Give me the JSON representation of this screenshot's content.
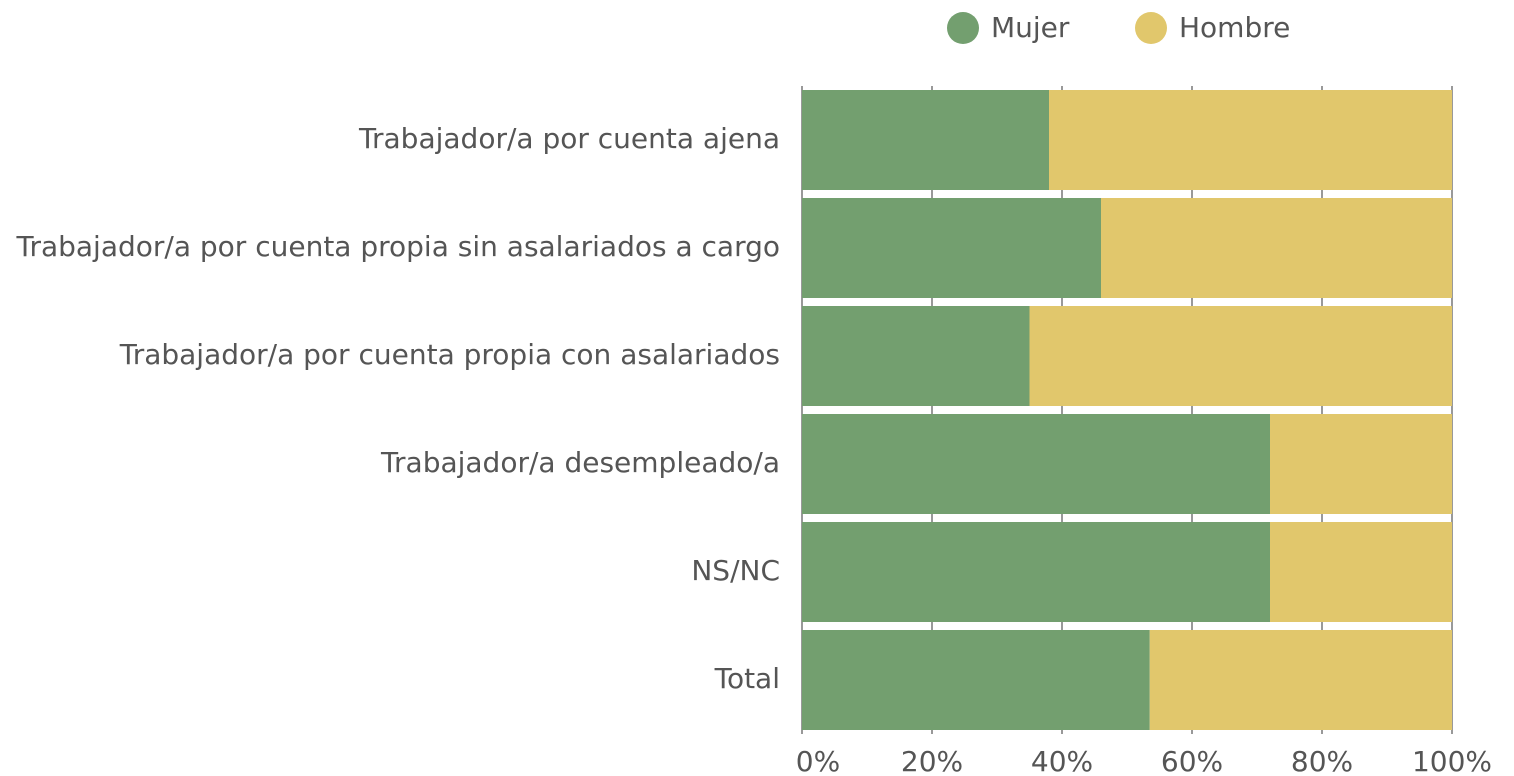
{
  "chart_data": {
    "type": "stacked-barh",
    "categories": [
      "Trabajador/a por cuenta ajena",
      "Trabajador/a por cuenta propia sin asalariados a cargo",
      "Trabajador/a por cuenta propia con asalariados",
      "Trabajador/a desempleado/a",
      "NS/NC",
      "Total"
    ],
    "series": [
      {
        "name": "Mujer",
        "color": "#739f6f",
        "values": [
          38,
          46,
          35,
          72,
          72,
          53.5
        ]
      },
      {
        "name": "Hombre",
        "color": "#e1c76c",
        "values": [
          62,
          54,
          65,
          28,
          28,
          46.5
        ]
      }
    ],
    "xlim": [
      0,
      100
    ],
    "xticks": [
      {
        "value": 0,
        "label": "0%"
      },
      {
        "value": 20,
        "label": "20%"
      },
      {
        "value": 40,
        "label": "40%"
      },
      {
        "value": 60,
        "label": "60%"
      },
      {
        "value": 80,
        "label": "80%"
      },
      {
        "value": 100,
        "label": "100%"
      }
    ],
    "grid": true
  }
}
